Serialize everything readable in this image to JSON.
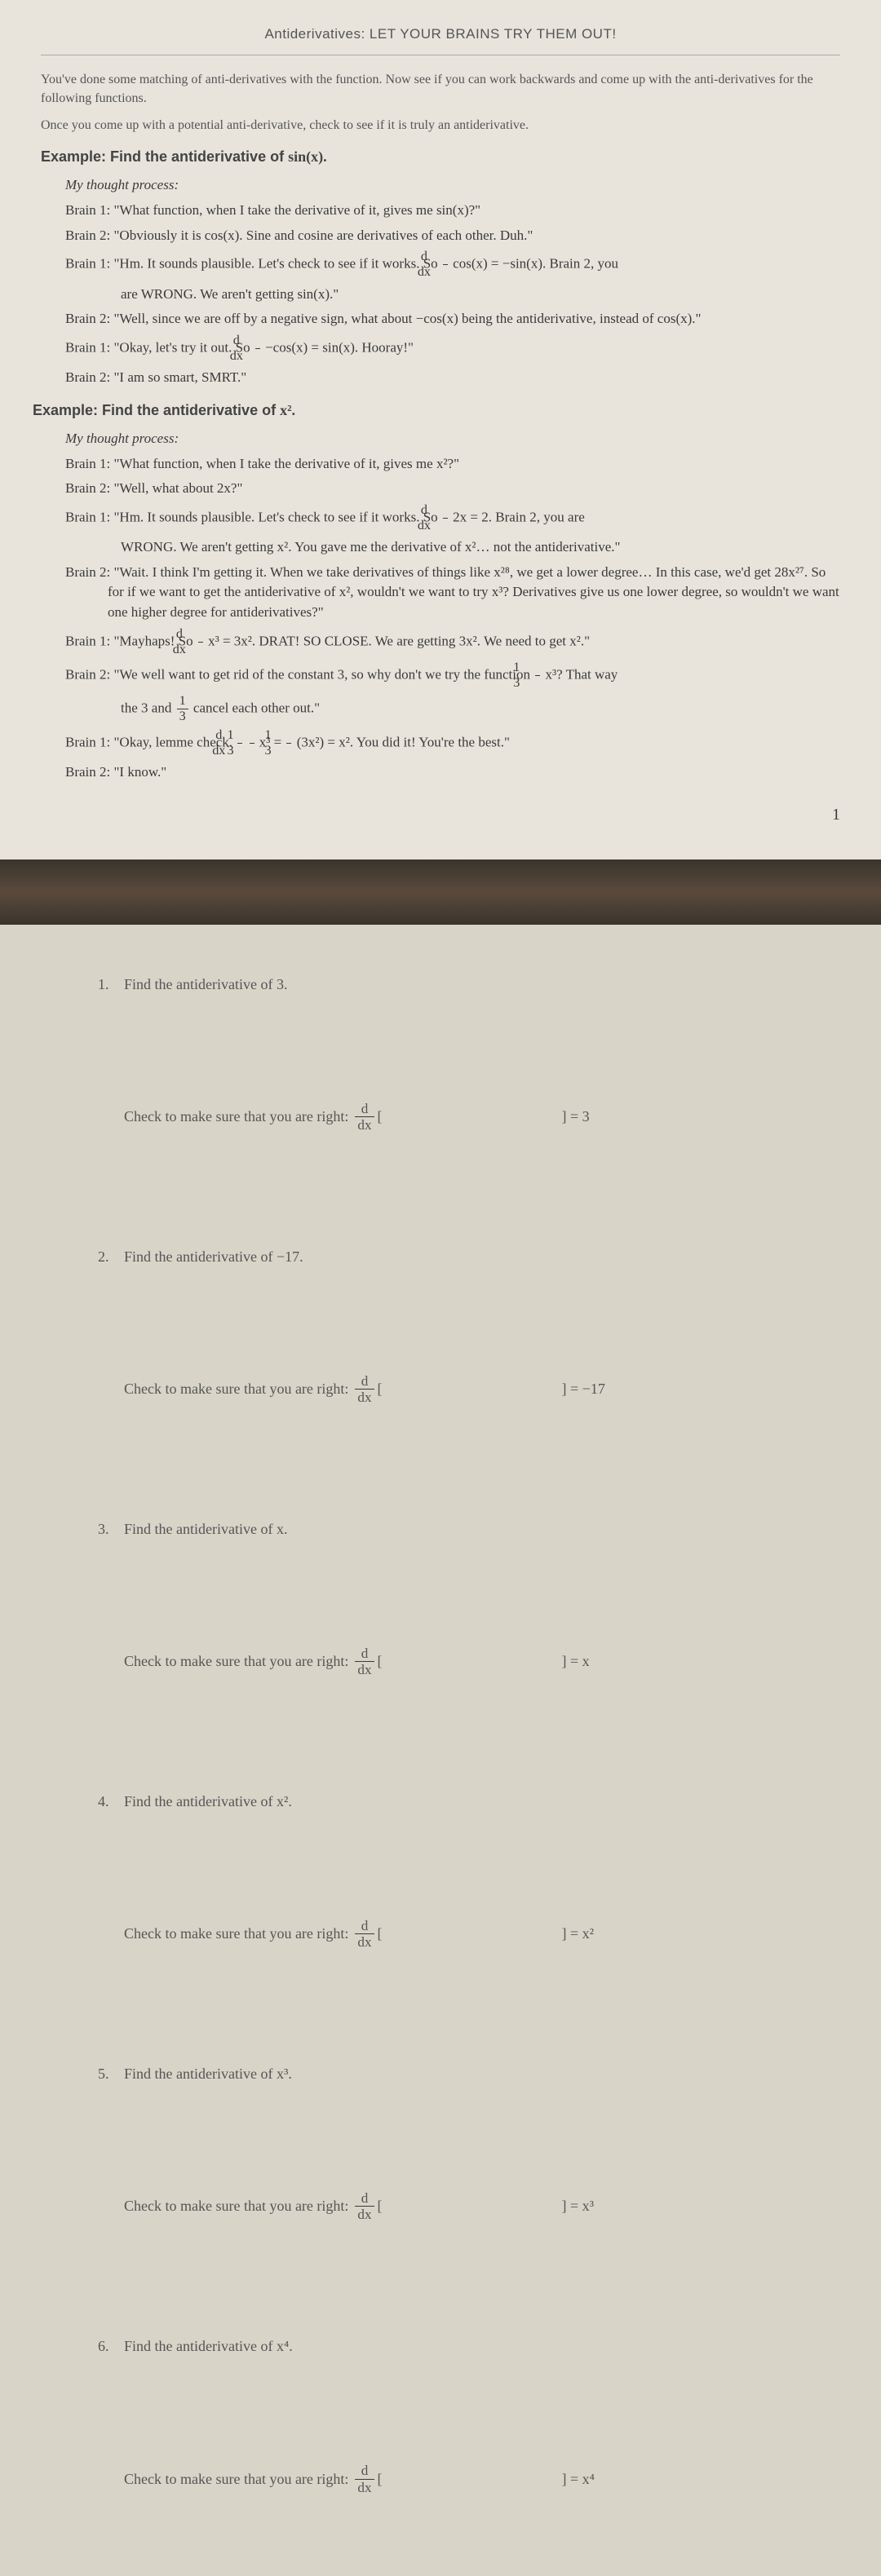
{
  "page1": {
    "header": "Antiderivatives: LET YOUR BRAINS TRY THEM OUT!",
    "intro1": "You've done some matching of anti-derivatives with the function. Now see if you can work backwards and come up with the anti-derivatives for the following functions.",
    "intro2": "Once you come up with a potential anti-derivative, check to see if it is truly an antiderivative.",
    "ex1": {
      "head_prefix": "Example: Find the antiderivative of ",
      "head_fn": "sin(x).",
      "thought": "My thought process:",
      "b1a": "Brain 1: \"What function, when I take the derivative of it, gives me sin(x)?\"",
      "b2a": "Brain 2: \"Obviously it is cos(x). Sine and cosine are derivatives of each other. Duh.\"",
      "b1b_pre": "Brain 1: \"Hm. It sounds plausible. Let's check to see if it works. So ",
      "b1b_post": "cos(x) = −sin(x). Brain 2, you",
      "b1b_cont": "are WRONG. We aren't getting sin(x).\"",
      "b2b": "Brain 2: \"Well, since we are off by a negative sign, what about −cos(x) being the antiderivative, instead of cos(x).\"",
      "b1c_pre": "Brain 1: \"Okay, let's try it out. So ",
      "b1c_post": "−cos(x) = sin(x). Hooray!\"",
      "b2c": "Brain 2: \"I am so smart, SMRT.\""
    },
    "ex2": {
      "head_prefix": "Example: Find the antiderivative of ",
      "head_fn": "x².",
      "thought": "My thought process:",
      "b1a": "Brain 1: \"What function, when I take the derivative of it, gives me x²?\"",
      "b2a": "Brain 2: \"Well, what about 2x?\"",
      "b1b_pre": "Brain 1: \"Hm. It sounds plausible. Let's check to see if it works. So ",
      "b1b_post": "2x = 2. Brain 2, you are",
      "b1b_cont": "WRONG. We aren't getting x². You gave me the derivative of x²… not the antiderivative.\"",
      "b2b": "Brain 2: \"Wait. I think I'm getting it. When we take derivatives of things like x²⁸, we get a lower degree… In this case, we'd get 28x²⁷. So for if we want to get the antiderivative of x², wouldn't we want to try x³? Derivatives give us one lower degree, so wouldn't we want one higher degree for antiderivatives?\"",
      "b1c_pre": "Brain 1: \"Mayhaps! So ",
      "b1c_post": "x³ = 3x². DRAT! SO CLOSE. We are getting 3x². We need to get x².\"",
      "b2c_pre": "Brain 2: \"We well want to get rid of the constant 3, so why don't we try the function ",
      "b2c_post": "x³? That way",
      "b2c_cont_pre": "the 3 and ",
      "b2c_cont_post": " cancel each other out.\"",
      "b1d_pre": "Brain 1: \"Okay, lemme check. ",
      "b1d_mid": "x³ = ",
      "b1d_post": "(3x²) = x². You did it! You're the best.\"",
      "b2d": "Brain 2: \"I know.\""
    },
    "pagenum": "1"
  },
  "frac": {
    "d": "d",
    "dx": "dx",
    "one": "1",
    "three": "3"
  },
  "page2": {
    "check_label": "Check to make sure that you are right:",
    "bracket_open": "[",
    "problems": [
      {
        "num": "1.",
        "text": "Find the antiderivative of 3.",
        "rhs": "] = 3"
      },
      {
        "num": "2.",
        "text": "Find the antiderivative of −17.",
        "rhs": "] = −17"
      },
      {
        "num": "3.",
        "text": "Find the antiderivative of x.",
        "rhs": "] = x"
      },
      {
        "num": "4.",
        "text": "Find the antiderivative of x².",
        "rhs": "] = x²"
      },
      {
        "num": "5.",
        "text": "Find the antiderivative of x³.",
        "rhs": "] = x³"
      },
      {
        "num": "6.",
        "text": "Find the antiderivative of x⁴.",
        "rhs": "] = x⁴"
      }
    ]
  }
}
